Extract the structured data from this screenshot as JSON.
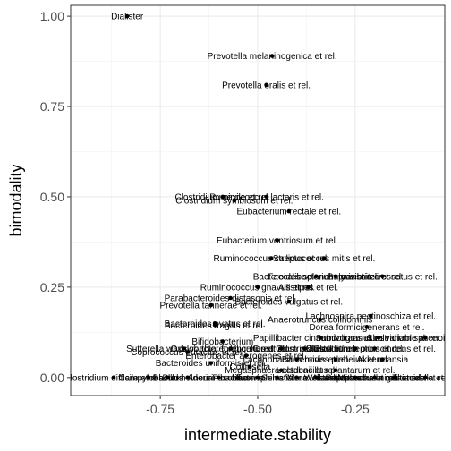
{
  "chart_data": {
    "type": "scatter",
    "xlabel": "intermediate.stability",
    "ylabel": "bimodality",
    "xlim": [
      -0.98,
      -0.02
    ],
    "ylim": [
      -0.05,
      1.03
    ],
    "x_ticks": [
      -0.75,
      -0.5,
      -0.25
    ],
    "x_tick_labels": [
      "-0.75",
      "-0.50",
      "-0.25"
    ],
    "y_ticks": [
      0.0,
      0.25,
      0.5,
      0.75,
      1.0
    ],
    "y_tick_labels": [
      "0.00",
      "0.25",
      "0.50",
      "0.75",
      "1.00"
    ],
    "grid": true,
    "points": [
      {
        "x": -0.835,
        "y": 1.0,
        "label": "Dialister"
      },
      {
        "x": -0.463,
        "y": 0.89,
        "label": "Prevotella melaninogenica et rel."
      },
      {
        "x": -0.478,
        "y": 0.81,
        "label": "Prevotella oralis et rel."
      },
      {
        "x": -0.477,
        "y": 0.5,
        "label": "Ruminococcus lactaris et rel."
      },
      {
        "x": -0.59,
        "y": 0.5,
        "label": "Clostridium nexile et rel."
      },
      {
        "x": -0.56,
        "y": 0.49,
        "label": "Clostridium symbiosum et rel."
      },
      {
        "x": -0.42,
        "y": 0.46,
        "label": "Eubacterium rectale et rel."
      },
      {
        "x": -0.45,
        "y": 0.38,
        "label": "Eubacterium ventriosum et rel."
      },
      {
        "x": -0.465,
        "y": 0.33,
        "label": "Ruminococcus callidus et rel."
      },
      {
        "x": -0.33,
        "y": 0.33,
        "label": "Streptococcus mitis et rel."
      },
      {
        "x": -0.35,
        "y": 0.28,
        "label": "Bacteroides splanchnicus et rel."
      },
      {
        "x": -0.18,
        "y": 0.28,
        "label": "Butyrivibrio crossotus et rel."
      },
      {
        "x": -0.3,
        "y": 0.28,
        "label": "Faecalibacterium prausnitzii et rel."
      },
      {
        "x": -0.5,
        "y": 0.25,
        "label": "Ruminococcus gnavus et rel."
      },
      {
        "x": -0.37,
        "y": 0.25,
        "label": "Allistipes et rel."
      },
      {
        "x": -0.57,
        "y": 0.22,
        "label": "Parabacteroides distasonis et rel."
      },
      {
        "x": -0.62,
        "y": 0.2,
        "label": "Prevotella tannerae et rel."
      },
      {
        "x": -0.42,
        "y": 0.21,
        "label": "Bacteroides vulgatus et rel."
      },
      {
        "x": -0.34,
        "y": 0.16,
        "label": "Anaerotruncus colihominis"
      },
      {
        "x": -0.21,
        "y": 0.17,
        "label": "Lachnospira pectinoschiza et rel."
      },
      {
        "x": -0.61,
        "y": 0.145,
        "label": "Bacteroides fragilis et rel."
      },
      {
        "x": -0.61,
        "y": 0.15,
        "label": "Bacteroides ovatus et rel."
      },
      {
        "x": -0.22,
        "y": 0.14,
        "label": "Dorea formicigenerans et rel."
      },
      {
        "x": -0.59,
        "y": 0.1,
        "label": "Bifidobacterium"
      },
      {
        "x": -0.34,
        "y": 0.11,
        "label": "Papillibacter cinnamivorans et rel."
      },
      {
        "x": -0.19,
        "y": 0.11,
        "label": "Subdoligranulum variable at rel."
      },
      {
        "x": -0.07,
        "y": 0.11,
        "label": "Clostridium sphenoides et rel."
      },
      {
        "x": -0.69,
        "y": 0.08,
        "label": "Sutterella wadsworthia et rel."
      },
      {
        "x": -0.68,
        "y": 0.07,
        "label": "Coprococcus eutactus et rel."
      },
      {
        "x": -0.57,
        "y": 0.08,
        "label": "Oxalobacter formigenes et rel."
      },
      {
        "x": -0.44,
        "y": 0.08,
        "label": "Uncultured Clostridiales II"
      },
      {
        "x": -0.38,
        "y": 0.08,
        "label": "Clostridium cellulosi et rel."
      },
      {
        "x": -0.25,
        "y": 0.08,
        "label": "Clostridium leptum et rel."
      },
      {
        "x": -0.2,
        "y": 0.08,
        "label": "Clostridium orbiscindens et rel."
      },
      {
        "x": -0.53,
        "y": 0.06,
        "label": "Enterobacter aerogenes et rel."
      },
      {
        "x": -0.4,
        "y": 0.05,
        "label": "Lachnobacillus bovis et rel."
      },
      {
        "x": -0.3,
        "y": 0.05,
        "label": "Bacteroides plebeius et rel."
      },
      {
        "x": -0.18,
        "y": 0.05,
        "label": "Akkermansia"
      },
      {
        "x": -0.62,
        "y": 0.04,
        "label": "Bacteroides uniformis et rel."
      },
      {
        "x": -0.52,
        "y": 0.03,
        "label": "Collinsella"
      },
      {
        "x": -0.44,
        "y": 0.02,
        "label": "Megasphaera elsdenii et rel."
      },
      {
        "x": -0.3,
        "y": 0.02,
        "label": "Lactobacillus plantarum et rel."
      },
      {
        "x": -0.87,
        "y": 0.0,
        "label": "Clostridium difficile et rel."
      },
      {
        "x": -0.78,
        "y": 0.0,
        "label": "Campylobacter"
      },
      {
        "x": -0.73,
        "y": 0.0,
        "label": "Bacillus"
      },
      {
        "x": -0.68,
        "y": 0.0,
        "label": "Burkholderia"
      },
      {
        "x": -0.6,
        "y": 0.0,
        "label": "Aneurinibacillus"
      },
      {
        "x": -0.55,
        "y": 0.0,
        "label": "Fusobacteria"
      },
      {
        "x": -0.5,
        "y": 0.0,
        "label": "Haemophilus"
      },
      {
        "x": -0.45,
        "y": 0.0,
        "label": "Serratia"
      },
      {
        "x": -0.4,
        "y": 0.0,
        "label": "Vibrio"
      },
      {
        "x": -0.35,
        "y": 0.0,
        "label": "Moraxellaceae"
      },
      {
        "x": -0.3,
        "y": 0.0,
        "label": "Weissella et rel."
      },
      {
        "x": -0.25,
        "y": 0.0,
        "label": "Asteroleplasma et rel."
      },
      {
        "x": -0.2,
        "y": 0.0,
        "label": "Peptococcus niger et rel."
      },
      {
        "x": -0.15,
        "y": 0.0,
        "label": "Mitsuokella multiacida et rel."
      },
      {
        "x": -0.07,
        "y": 0.0,
        "label": "Tannerella et rel."
      }
    ]
  }
}
